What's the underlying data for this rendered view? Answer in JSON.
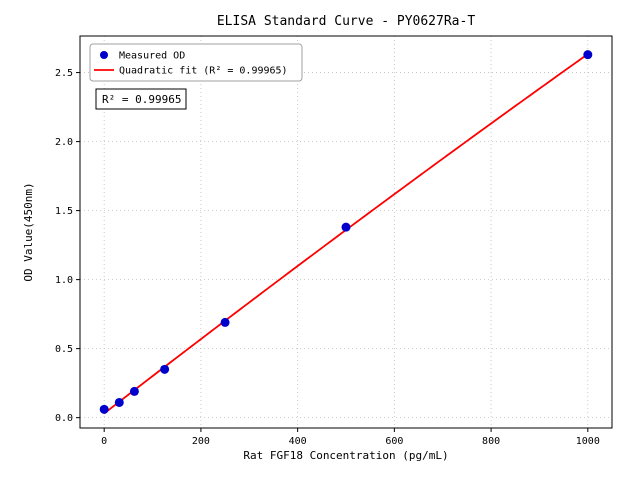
{
  "chart_data": {
    "type": "scatter",
    "title": "ELISA Standard Curve - PY0627Ra-T",
    "xlabel": "Rat FGF18 Concentration (pg/mL)",
    "ylabel": "OD Value(450nm)",
    "xlim": [
      -50,
      1050
    ],
    "ylim": [
      -0.075,
      2.765
    ],
    "xticks": [
      0,
      200,
      400,
      600,
      800,
      1000
    ],
    "yticks": [
      0.0,
      0.5,
      1.0,
      1.5,
      2.0,
      2.5
    ],
    "grid": true,
    "legend_position": "upper left",
    "annotation": "R² = 0.99965",
    "series": [
      {
        "name": "Measured OD",
        "type": "scatter",
        "color": "#0000cd",
        "x": [
          0,
          31.25,
          62.5,
          125,
          250,
          500,
          1000
        ],
        "y": [
          0.06,
          0.11,
          0.19,
          0.35,
          0.69,
          1.38,
          2.63
        ]
      },
      {
        "name": "Quadratic fit (R² = 0.99965)",
        "type": "line",
        "color": "#ff0000",
        "fit": "quadratic",
        "r_squared": 0.99965
      }
    ]
  }
}
